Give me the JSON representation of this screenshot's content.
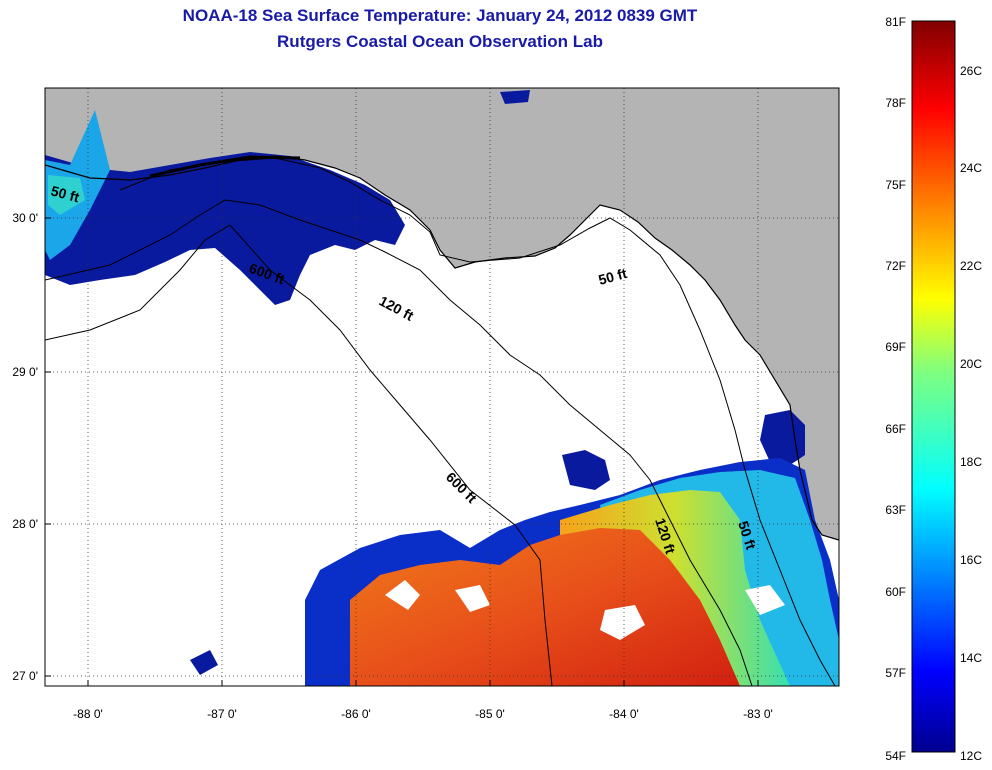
{
  "title": "NOAA-18 Sea Surface Temperature:  January 24, 2012 0839 GMT",
  "subtitle": "Rutgers Coastal Ocean Observation Lab",
  "axes": {
    "lon_ticks": [
      "-88 0'",
      "-87 0'",
      "-86 0'",
      "-85 0'",
      "-84 0'",
      "-83 0'"
    ],
    "lat_ticks": [
      "30 0'",
      "29 0'",
      "28 0'",
      "27 0'"
    ]
  },
  "contours": {
    "c50_west": "50 ft",
    "c600_west": "600 ft",
    "c120_mid": "120 ft",
    "c50_east": "50 ft",
    "c600_south": "600 ft",
    "c120_south": "120 ft",
    "c50_south": "50 ft"
  },
  "colorbar": {
    "f_labels": [
      "81F",
      "78F",
      "75F",
      "72F",
      "69F",
      "66F",
      "63F",
      "60F",
      "57F",
      "54F"
    ],
    "c_labels": [
      "26C",
      "24C",
      "22C",
      "20C",
      "18C",
      "16C",
      "14C",
      "12C"
    ]
  },
  "colors": {
    "land": "#b4b4b4",
    "no_data": "#ffffff",
    "cold": "#0a1a9e",
    "warm": "#e2501a",
    "title": "#1a1aa8"
  }
}
